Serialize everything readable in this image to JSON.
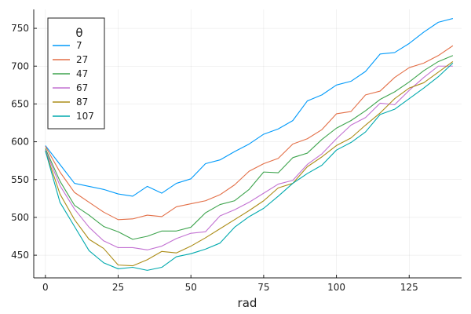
{
  "chart_data": {
    "type": "line",
    "xlabel": "rad",
    "ylabel": "",
    "xlim": [
      -4,
      143
    ],
    "ylim": [
      420,
      775
    ],
    "x_ticks": [
      0,
      25,
      50,
      75,
      100,
      125
    ],
    "y_ticks": [
      450,
      500,
      550,
      600,
      650,
      700,
      750
    ],
    "grid": true,
    "legend": {
      "title": "θ",
      "placement": "top-left"
    },
    "x": [
      0,
      5,
      10,
      15,
      20,
      25,
      30,
      35,
      40,
      45,
      50,
      55,
      60,
      65,
      70,
      75,
      80,
      85,
      90,
      95,
      100,
      105,
      110,
      115,
      120,
      125,
      130,
      135,
      140
    ],
    "series": [
      {
        "name": "7",
        "color": "#009AFA",
        "values": [
          595,
          570,
          545,
          541,
          537,
          531,
          528,
          541,
          532,
          545,
          551,
          571,
          576,
          587,
          597,
          610,
          617,
          628,
          654,
          662,
          675,
          680,
          693,
          716,
          718,
          730,
          745,
          758,
          763
        ]
      },
      {
        "name": "27",
        "color": "#E36F47",
        "values": [
          594,
          560,
          533,
          520,
          507,
          497,
          498,
          503,
          501,
          514,
          518,
          522,
          530,
          543,
          561,
          571,
          578,
          597,
          604,
          616,
          637,
          640,
          662,
          667,
          685,
          698,
          704,
          714,
          727
        ]
      },
      {
        "name": "47",
        "color": "#3EA44E",
        "values": [
          591,
          548,
          516,
          503,
          488,
          481,
          471,
          475,
          482,
          482,
          487,
          506,
          517,
          522,
          537,
          560,
          559,
          579,
          585,
          603,
          618,
          628,
          641,
          656,
          666,
          679,
          694,
          706,
          714
        ]
      },
      {
        "name": "67",
        "color": "#C271D2",
        "values": [
          589,
          542,
          511,
          487,
          469,
          460,
          460,
          457,
          462,
          472,
          479,
          481,
          502,
          510,
          520,
          532,
          544,
          549,
          570,
          584,
          604,
          622,
          632,
          651,
          649,
          668,
          685,
          700,
          700
        ]
      },
      {
        "name": "87",
        "color": "#AC8D18",
        "values": [
          588,
          531,
          497,
          471,
          459,
          437,
          436,
          444,
          455,
          453,
          462,
          473,
          485,
          497,
          509,
          522,
          539,
          545,
          567,
          580,
          595,
          605,
          622,
          638,
          657,
          671,
          678,
          692,
          706
        ]
      },
      {
        "name": "107",
        "color": "#00A9AD",
        "values": [
          588,
          520,
          488,
          456,
          440,
          432,
          434,
          430,
          434,
          448,
          452,
          458,
          466,
          487,
          501,
          512,
          528,
          545,
          558,
          569,
          589,
          599,
          613,
          636,
          643,
          657,
          671,
          686,
          704
        ]
      }
    ]
  }
}
